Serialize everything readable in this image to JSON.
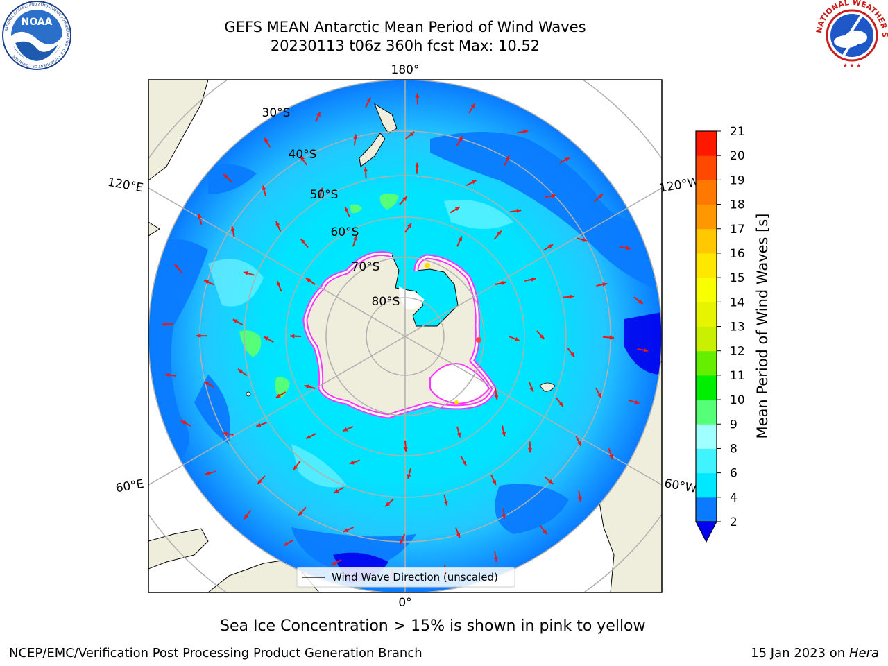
{
  "header": {
    "title_line1": "GEFS MEAN Antarctic Mean Period of Wind Waves",
    "title_line2": "20230113 t06z 360h fcst   Max: 10.52"
  },
  "logos": {
    "left": {
      "name": "noaa-logo",
      "text": "NOAA",
      "ring_text": "NATIONAL OCEANIC AND ATMOSPHERIC ADMINISTRATION · U.S. DEPARTMENT OF COMMERCE"
    },
    "right": {
      "name": "nws-logo",
      "ring_text": "NATIONAL WEATHER SERVICE"
    }
  },
  "map": {
    "projection": "south-polar-stereographic",
    "longitude_labels": {
      "top": "180°",
      "bottom": "0°",
      "upper_left": "120°E",
      "upper_right": "120°W",
      "lower_left": "60°E",
      "lower_right": "60°W"
    },
    "latitude_labels": [
      "30°S",
      "40°S",
      "50°S",
      "60°S",
      "70°S",
      "80°S"
    ],
    "legend_label": "Wind Wave Direction (unscaled)",
    "arrow_color": "#e41a1c",
    "land_color": "#efeddb",
    "ice_colors": [
      "#ff33ff",
      "#ffffff",
      "#ffdd00"
    ]
  },
  "colorbar": {
    "label": "Mean Period of Wind Waves [s]",
    "ticks": [
      "2",
      "4",
      "6",
      "8",
      "9",
      "10",
      "11",
      "12",
      "13",
      "14",
      "15",
      "16",
      "17",
      "18",
      "19",
      "20",
      "21"
    ],
    "colors": [
      "#0a7bff",
      "#00e8ff",
      "#40f4ff",
      "#a0ffff",
      "#55ff77",
      "#00ee00",
      "#66ee00",
      "#c8f000",
      "#e6f400",
      "#f8ff00",
      "#ffe800",
      "#ffc800",
      "#ff9800",
      "#ff7800",
      "#ff4800",
      "#ff1800",
      "#ff0000"
    ],
    "underflow_color": "#0000ee"
  },
  "footer": {
    "note": "Sea Ice Concentration > 15% is shown in pink to yellow",
    "branch": "NCEP/EMC/Verification Post Processing Product Generation Branch",
    "date": "15 Jan 2023 on",
    "machine": "Hera"
  }
}
